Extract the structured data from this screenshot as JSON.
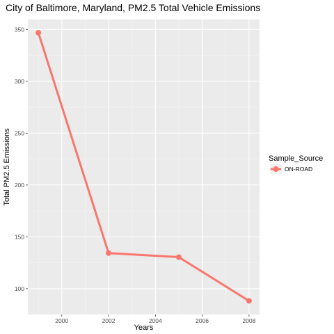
{
  "chart_data": {
    "type": "line",
    "title": "City of Baltimore, Maryland, PM2.5 Total Vehicle Emissions",
    "xlabel": "Years",
    "ylabel": "Total PM2.5 Emissions",
    "x_ticks": [
      2000,
      2002,
      2004,
      2006,
      2008
    ],
    "y_ticks": [
      100,
      150,
      200,
      250,
      300,
      350
    ],
    "xlim": [
      1998.55,
      2008.45
    ],
    "ylim": [
      75.1,
      359.6
    ],
    "grid": true,
    "legend": {
      "title": "Sample_Source",
      "position": "right"
    },
    "series": [
      {
        "name": "ON-ROAD",
        "color": "#F8766D",
        "x": [
          1999,
          2002,
          2005,
          2008
        ],
        "y": [
          346.82,
          134.31,
          130.43,
          88.28
        ]
      }
    ]
  }
}
